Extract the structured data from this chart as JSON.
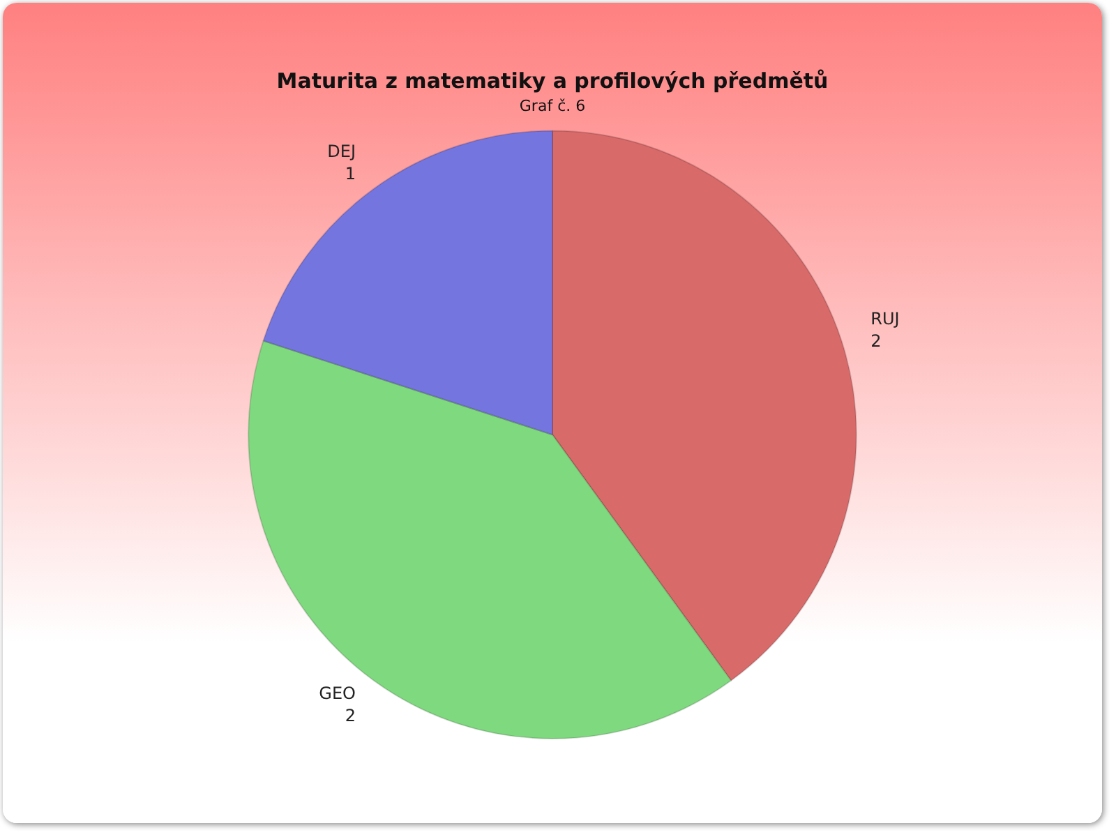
{
  "chart_data": {
    "type": "pie",
    "title": "Maturita z matematiky a profilových předmětů",
    "subtitle": "Graf č. 6",
    "categories": [
      "RUJ",
      "GEO",
      "DEJ"
    ],
    "values": [
      2,
      2,
      1
    ],
    "colors": [
      "#d86a6a",
      "#7fd97f",
      "#7575e0"
    ],
    "data_labels": true,
    "legend": false
  }
}
